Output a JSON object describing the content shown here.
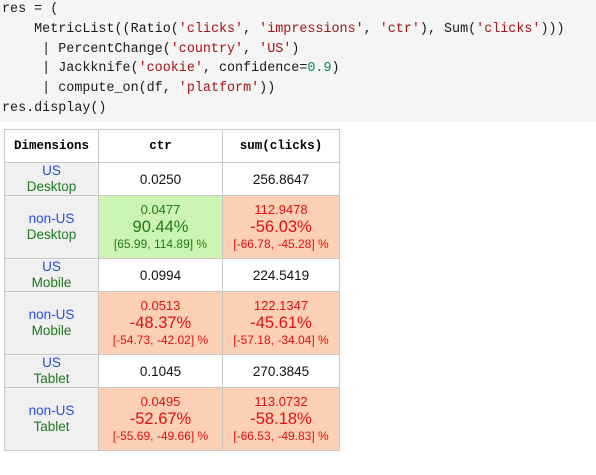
{
  "code": {
    "lines": [
      [
        {
          "t": "res = ("
        }
      ],
      [
        {
          "t": "    MetricList((Ratio("
        },
        {
          "t": "'clicks'",
          "c": "str"
        },
        {
          "t": ", "
        },
        {
          "t": "'impressions'",
          "c": "str"
        },
        {
          "t": ", "
        },
        {
          "t": "'ctr'",
          "c": "str"
        },
        {
          "t": "), Sum("
        },
        {
          "t": "'clicks'",
          "c": "str"
        },
        {
          "t": ")))"
        }
      ],
      [
        {
          "t": "     | PercentChange("
        },
        {
          "t": "'country'",
          "c": "str"
        },
        {
          "t": ", "
        },
        {
          "t": "'US'",
          "c": "str"
        },
        {
          "t": ")"
        }
      ],
      [
        {
          "t": "     | Jackknife("
        },
        {
          "t": "'cookie'",
          "c": "str"
        },
        {
          "t": ", confidence="
        },
        {
          "t": "0.9",
          "c": "num"
        },
        {
          "t": ")"
        }
      ],
      [
        {
          "t": "     | compute_on(df, "
        },
        {
          "t": "'platform'",
          "c": "str"
        },
        {
          "t": "))"
        }
      ],
      [
        {
          "t": "res.display()"
        }
      ]
    ]
  },
  "table": {
    "headers": [
      "Dimensions",
      "ctr",
      "sum(clicks)"
    ],
    "rows": [
      {
        "country": "US",
        "platform": "Desktop",
        "ctr": {
          "value": "0.0250"
        },
        "sum": {
          "value": "256.8647"
        }
      },
      {
        "country": "non-US",
        "platform": "Desktop",
        "ctr": {
          "value": "0.0477",
          "change": "90.44%",
          "ci": "[65.99, 114.89] %",
          "status": "pos"
        },
        "sum": {
          "value": "112.9478",
          "change": "-56.03%",
          "ci": "[-66.78, -45.28] %",
          "status": "neg"
        }
      },
      {
        "country": "US",
        "platform": "Mobile",
        "ctr": {
          "value": "0.0994"
        },
        "sum": {
          "value": "224.5419"
        }
      },
      {
        "country": "non-US",
        "platform": "Mobile",
        "ctr": {
          "value": "0.0513",
          "change": "-48.37%",
          "ci": "[-54.73, -42.02] %",
          "status": "neg"
        },
        "sum": {
          "value": "122.1347",
          "change": "-45.61%",
          "ci": "[-57.18, -34.04] %",
          "status": "neg"
        }
      },
      {
        "country": "US",
        "platform": "Tablet",
        "ctr": {
          "value": "0.1045"
        },
        "sum": {
          "value": "270.3845"
        }
      },
      {
        "country": "non-US",
        "platform": "Tablet",
        "ctr": {
          "value": "0.0495",
          "change": "-52.67%",
          "ci": "[-55.69, -49.66] %",
          "status": "neg"
        },
        "sum": {
          "value": "113.0732",
          "change": "-58.18%",
          "ci": "[-66.53, -49.83] %",
          "status": "neg"
        }
      }
    ]
  },
  "colors": {
    "code_background": "#f5f5f5",
    "string": "#a31515",
    "number": "#098658",
    "dimension_country": "#1f4fd6",
    "dimension_platform": "#1d7a1d",
    "positive_bg": "#ccf5b4",
    "positive_text": "#1f7a12",
    "negative_bg": "#fcd0b4",
    "negative_text": "#e01010"
  }
}
